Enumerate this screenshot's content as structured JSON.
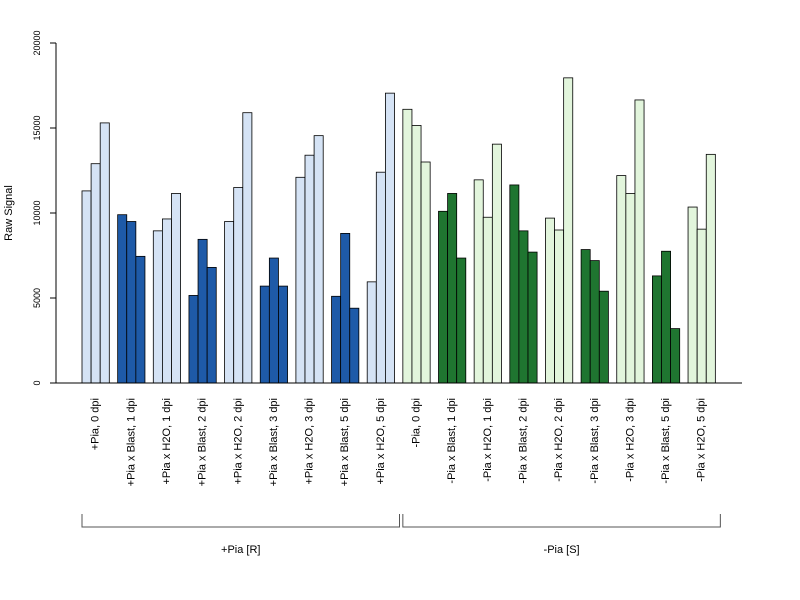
{
  "chart_data": {
    "type": "bar",
    "title": "",
    "ylabel": "Raw Signal",
    "ylim": [
      0,
      20000
    ],
    "yticks": [
      0,
      5000,
      10000,
      15000,
      20000
    ],
    "bars_per_category": 3,
    "colors": {
      "plus_pia_control": "#d5e3f5",
      "plus_pia_blast": "#1e5aa8",
      "minus_pia_control": "#e2f5dc",
      "minus_pia_blast": "#1f7530"
    },
    "categories": [
      {
        "label": "+Pia, 0 dpi",
        "values": [
          11300,
          12900,
          15300
        ],
        "color_key": "plus_pia_control"
      },
      {
        "label": "+Pia x Blast, 1 dpi",
        "values": [
          9900,
          9500,
          7450
        ],
        "color_key": "plus_pia_blast"
      },
      {
        "label": "+Pia x H2O, 1 dpi",
        "values": [
          8950,
          9650,
          11150
        ],
        "color_key": "plus_pia_control"
      },
      {
        "label": "+Pia x Blast, 2 dpi",
        "values": [
          5150,
          8450,
          6800
        ],
        "color_key": "plus_pia_blast"
      },
      {
        "label": "+Pia x H2O, 2 dpi",
        "values": [
          9500,
          11500,
          15900
        ],
        "color_key": "plus_pia_control"
      },
      {
        "label": "+Pia x Blast, 3 dpi",
        "values": [
          5700,
          7350,
          5700
        ],
        "color_key": "plus_pia_blast"
      },
      {
        "label": "+Pia x H2O, 3 dpi",
        "values": [
          12100,
          13400,
          14550
        ],
        "color_key": "plus_pia_control"
      },
      {
        "label": "+Pia x Blast, 5 dpi",
        "values": [
          5100,
          8800,
          4400
        ],
        "color_key": "plus_pia_blast"
      },
      {
        "label": "+Pia x H2O, 5 dpi",
        "values": [
          5950,
          12400,
          17050
        ],
        "color_key": "plus_pia_control"
      },
      {
        "label": "-Pia, 0 dpi",
        "values": [
          16100,
          15150,
          13000
        ],
        "color_key": "minus_pia_control"
      },
      {
        "label": "-Pia x Blast, 1 dpi",
        "values": [
          10100,
          11150,
          7350
        ],
        "color_key": "minus_pia_blast"
      },
      {
        "label": "-Pia x H2O, 1 dpi",
        "values": [
          11950,
          9750,
          14050
        ],
        "color_key": "minus_pia_control"
      },
      {
        "label": "-Pia x Blast, 2 dpi",
        "values": [
          11650,
          8950,
          7700
        ],
        "color_key": "minus_pia_blast"
      },
      {
        "label": "-Pia x H2O, 2 dpi",
        "values": [
          9700,
          9000,
          17950
        ],
        "color_key": "minus_pia_control"
      },
      {
        "label": "-Pia x Blast, 3 dpi",
        "values": [
          7850,
          7200,
          5400
        ],
        "color_key": "minus_pia_blast"
      },
      {
        "label": "-Pia x H2O, 3 dpi",
        "values": [
          12200,
          11150,
          16650
        ],
        "color_key": "minus_pia_control"
      },
      {
        "label": "-Pia x Blast, 5 dpi",
        "values": [
          6300,
          7750,
          3200
        ],
        "color_key": "minus_pia_blast"
      },
      {
        "label": "-Pia x H2O, 5 dpi",
        "values": [
          10350,
          9050,
          13450
        ],
        "color_key": "minus_pia_control"
      }
    ],
    "groups": [
      {
        "label": "+Pia [R]",
        "first_category": 0,
        "last_category": 8
      },
      {
        "label": "-Pia [S]",
        "first_category": 9,
        "last_category": 17
      }
    ],
    "grid": false,
    "legend": "none"
  }
}
